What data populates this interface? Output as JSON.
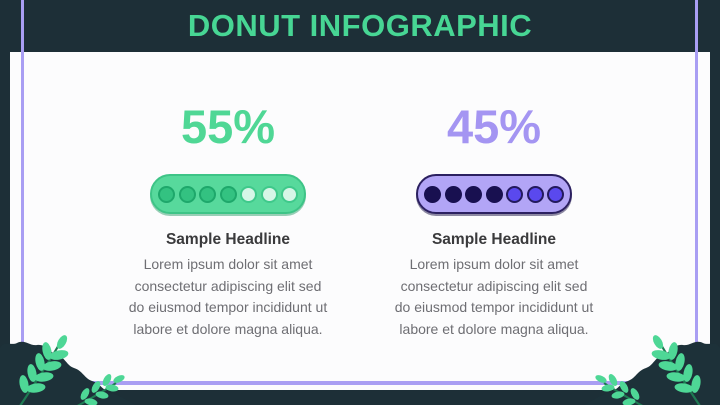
{
  "slide": {
    "title": "DONUT INFOGRAPHIC",
    "colors": {
      "background": "#1d2f37",
      "title_green": "#47d694",
      "frame_purple": "#a99ef3",
      "card_white": "#fcfcfd",
      "green_accent": "#4fd795",
      "green_pill": "#57d99c",
      "green_dot_filled": "#33c281",
      "green_dot_empty": "#d6f6e7",
      "purple_accent": "#a495f2",
      "purple_pill": "#b2a5f6",
      "purple_dot_filled": "#181050",
      "purple_dot_empty": "#5a49ee",
      "headline_text": "#3a3a3c",
      "body_text": "#6e6e73",
      "leaf_green": "#4ed796"
    }
  },
  "infographics": [
    {
      "id": "left",
      "theme": "green",
      "percent": "55%",
      "filled_dots": 4,
      "total_dots": 7,
      "headline": "Sample Headline",
      "body": "Lorem ipsum dolor sit amet\nconsectetur adipiscing elit sed\ndo eiusmod tempor incididunt ut\nlabore et dolore magna aliqua."
    },
    {
      "id": "right",
      "theme": "purple",
      "percent": "45%",
      "filled_dots": 4,
      "total_dots": 7,
      "headline": "Sample Headline",
      "body": "Lorem ipsum dolor sit amet\nconsectetur adipiscing elit sed\ndo eiusmod tempor incididunt ut\nlabore et dolore magna aliqua."
    }
  ]
}
